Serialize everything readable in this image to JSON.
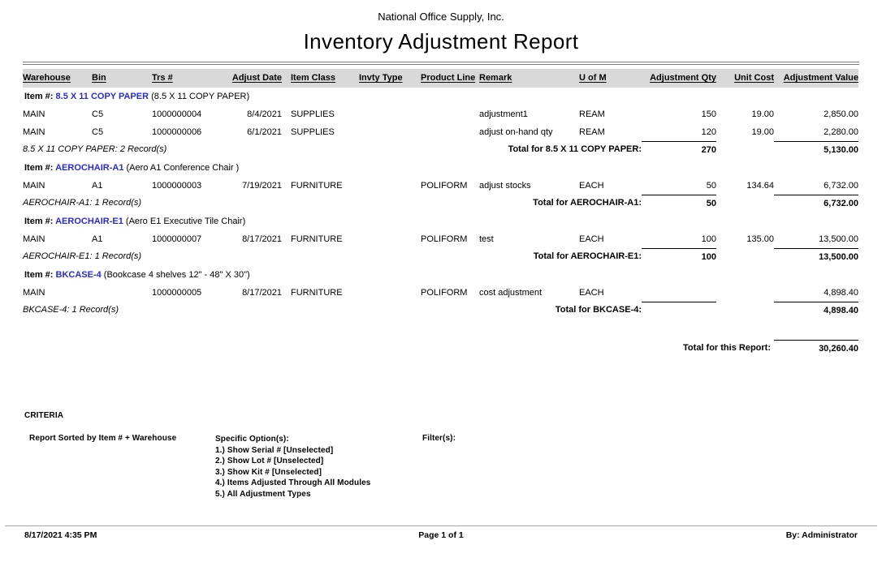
{
  "report": {
    "company": "National Office Supply, Inc.",
    "title": "Inventory Adjustment Report",
    "item_label": "Item #:",
    "columns": [
      "Warehouse",
      "Bin",
      "Trs #",
      "Adjust Date",
      "Item Class",
      "Invty Type",
      "Product Line",
      "Remark",
      "U of M",
      "Adjustment Qty",
      "Unit Cost",
      "Adjustment Value"
    ],
    "groups": [
      {
        "item_code": "8.5 X 11 COPY PAPER",
        "item_desc": "(8.5 X 11 COPY PAPER)",
        "rows": [
          {
            "warehouse": "MAIN",
            "bin": "C5",
            "trs": "1000000004",
            "adjust_date": "8/4/2021",
            "item_class": "SUPPLIES",
            "invty_type": "",
            "product_line": "",
            "remark": "adjustment1",
            "uofm": "REAM",
            "qty": "150",
            "unit_cost": "19.00",
            "value": "2,850.00"
          },
          {
            "warehouse": "MAIN",
            "bin": "C5",
            "trs": "1000000006",
            "adjust_date": "6/1/2021",
            "item_class": "SUPPLIES",
            "invty_type": "",
            "product_line": "",
            "remark": "adjust on-hand qty",
            "uofm": "REAM",
            "qty": "120",
            "unit_cost": "19.00",
            "value": "2,280.00"
          }
        ],
        "record_count": "8.5 X 11 COPY PAPER: 2 Record(s)",
        "total_label": "Total for 8.5 X 11 COPY PAPER:",
        "total_qty": "270",
        "total_value": "5,130.00"
      },
      {
        "item_code": "AEROCHAIR-A1",
        "item_desc": "(Aero A1 Conference Chair )",
        "rows": [
          {
            "warehouse": "MAIN",
            "bin": "A1",
            "trs": "1000000003",
            "adjust_date": "7/19/2021",
            "item_class": "FURNITURE",
            "invty_type": "",
            "product_line": "POLIFORM",
            "remark": "adjust stocks",
            "uofm": "EACH",
            "qty": "50",
            "unit_cost": "134.64",
            "value": "6,732.00"
          }
        ],
        "record_count": "AEROCHAIR-A1: 1 Record(s)",
        "total_label": "Total for AEROCHAIR-A1:",
        "total_qty": "50",
        "total_value": "6,732.00"
      },
      {
        "item_code": "AEROCHAIR-E1",
        "item_desc": "(Aero E1 Executive Tile Chair)",
        "rows": [
          {
            "warehouse": "MAIN",
            "bin": "A1",
            "trs": "1000000007",
            "adjust_date": "8/17/2021",
            "item_class": "FURNITURE",
            "invty_type": "",
            "product_line": "POLIFORM",
            "remark": "test",
            "uofm": "EACH",
            "qty": "100",
            "unit_cost": "135.00",
            "value": "13,500.00"
          }
        ],
        "record_count": "AEROCHAIR-E1: 1 Record(s)",
        "total_label": "Total for AEROCHAIR-E1:",
        "total_qty": "100",
        "total_value": "13,500.00"
      },
      {
        "item_code": "BKCASE-4",
        "item_desc": "(Bookcase 4 shelves 12\" - 48\" X 30\")",
        "rows": [
          {
            "warehouse": "MAIN",
            "bin": "",
            "trs": "1000000005",
            "adjust_date": "8/17/2021",
            "item_class": "FURNITURE",
            "invty_type": "",
            "product_line": "POLIFORM",
            "remark": "cost adjustment",
            "uofm": "EACH",
            "qty": "",
            "unit_cost": "",
            "value": "4,898.40"
          }
        ],
        "record_count": "BKCASE-4: 1 Record(s)",
        "total_label": "Total for BKCASE-4:",
        "total_qty": "",
        "total_value": "4,898.40"
      }
    ],
    "report_total_label": "Total for this Report:",
    "report_total_value": "30,260.40",
    "criteria": {
      "heading": "CRITERIA",
      "sort": "Report Sorted by Item # + Warehouse",
      "options_label": "Specific Option(s):",
      "options": [
        "1.) Show Serial # [Unselected]",
        "2.) Show Lot # [Unselected]",
        "3.) Show Kit # [Unselected]",
        "4.) Items Adjusted Through All Modules",
        "5.) All Adjustment Types"
      ],
      "filters_label": "Filter(s):"
    },
    "footer": {
      "datetime": "8/17/2021 4:35 PM",
      "page": "Page 1 of 1",
      "by": "By: Administrator"
    },
    "colors": {
      "item_link": "#2a2ad4",
      "header_band": "#d9d9d9"
    }
  }
}
